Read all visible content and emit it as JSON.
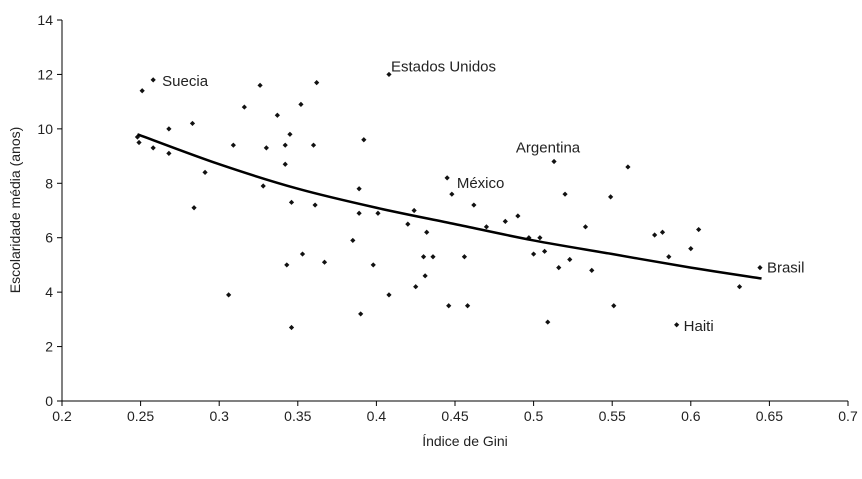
{
  "chart_data": {
    "type": "scatter",
    "title": "",
    "xlabel": "Índice de Gini",
    "ylabel": "Escolaridade média (anos)",
    "xlim": [
      0.2,
      0.7
    ],
    "ylim": [
      0,
      14
    ],
    "x_ticks": [
      0.2,
      0.25,
      0.3,
      0.35,
      0.4,
      0.45,
      0.5,
      0.55,
      0.6,
      0.65,
      0.7
    ],
    "x_tick_labels": [
      "0.2",
      "0.25",
      "0.3",
      "0.35",
      "0.4",
      "0.45",
      "0.5",
      "0.55",
      "0.6",
      "0.65",
      "0.7"
    ],
    "y_ticks": [
      0,
      2,
      4,
      6,
      8,
      10,
      12,
      14
    ],
    "y_tick_labels": [
      "0",
      "2",
      "4",
      "6",
      "8",
      "10",
      "12",
      "14"
    ],
    "grid": false,
    "legend": "none",
    "series": [
      {
        "points": [
          [
            0.248,
            9.7
          ],
          [
            0.249,
            9.5
          ],
          [
            0.251,
            11.4
          ],
          [
            0.258,
            11.8
          ],
          [
            0.258,
            9.3
          ],
          [
            0.268,
            10.0
          ],
          [
            0.268,
            9.1
          ],
          [
            0.283,
            10.2
          ],
          [
            0.284,
            7.1
          ],
          [
            0.291,
            8.4
          ],
          [
            0.306,
            3.9
          ],
          [
            0.309,
            9.4
          ],
          [
            0.316,
            10.8
          ],
          [
            0.326,
            11.6
          ],
          [
            0.328,
            7.9
          ],
          [
            0.33,
            9.3
          ],
          [
            0.337,
            10.5
          ],
          [
            0.342,
            9.4
          ],
          [
            0.342,
            8.7
          ],
          [
            0.343,
            5.0
          ],
          [
            0.345,
            9.8
          ],
          [
            0.346,
            7.3
          ],
          [
            0.346,
            2.7
          ],
          [
            0.352,
            10.9
          ],
          [
            0.353,
            5.4
          ],
          [
            0.36,
            9.4
          ],
          [
            0.361,
            7.2
          ],
          [
            0.362,
            11.7
          ],
          [
            0.367,
            5.1
          ],
          [
            0.385,
            5.9
          ],
          [
            0.389,
            7.8
          ],
          [
            0.389,
            6.9
          ],
          [
            0.39,
            3.2
          ],
          [
            0.392,
            9.6
          ],
          [
            0.398,
            5.0
          ],
          [
            0.401,
            6.9
          ],
          [
            0.408,
            3.9
          ],
          [
            0.408,
            12.0
          ],
          [
            0.42,
            6.5
          ],
          [
            0.424,
            7.0
          ],
          [
            0.425,
            4.2
          ],
          [
            0.43,
            5.3
          ],
          [
            0.431,
            4.6
          ],
          [
            0.432,
            6.2
          ],
          [
            0.436,
            5.3
          ],
          [
            0.445,
            8.2
          ],
          [
            0.446,
            3.5
          ],
          [
            0.448,
            7.6
          ],
          [
            0.456,
            5.3
          ],
          [
            0.458,
            3.5
          ],
          [
            0.462,
            7.2
          ],
          [
            0.47,
            6.4
          ],
          [
            0.482,
            6.6
          ],
          [
            0.49,
            6.8
          ],
          [
            0.497,
            6.0
          ],
          [
            0.5,
            5.4
          ],
          [
            0.504,
            6.0
          ],
          [
            0.507,
            5.5
          ],
          [
            0.509,
            2.9
          ],
          [
            0.513,
            8.8
          ],
          [
            0.516,
            4.9
          ],
          [
            0.52,
            7.6
          ],
          [
            0.523,
            5.2
          ],
          [
            0.533,
            6.4
          ],
          [
            0.537,
            4.8
          ],
          [
            0.549,
            7.5
          ],
          [
            0.551,
            3.5
          ],
          [
            0.56,
            8.6
          ],
          [
            0.577,
            6.1
          ],
          [
            0.582,
            6.2
          ],
          [
            0.586,
            5.3
          ],
          [
            0.591,
            2.8
          ],
          [
            0.6,
            5.6
          ],
          [
            0.605,
            6.3
          ],
          [
            0.631,
            4.2
          ],
          [
            0.644,
            4.9
          ]
        ]
      }
    ],
    "trendline": {
      "type": "power-curve",
      "points": [
        [
          0.248,
          9.8
        ],
        [
          0.3,
          8.7
        ],
        [
          0.35,
          7.8
        ],
        [
          0.4,
          7.1
        ],
        [
          0.45,
          6.5
        ],
        [
          0.5,
          5.9
        ],
        [
          0.55,
          5.4
        ],
        [
          0.6,
          4.9
        ],
        [
          0.645,
          4.5
        ]
      ]
    },
    "annotations": [
      {
        "label": "Suecia",
        "x": 0.258,
        "y": 11.8
      },
      {
        "label": "Estados Unidos",
        "x": 0.408,
        "y": 12.0
      },
      {
        "label": "Argentina",
        "x": 0.513,
        "y": 8.8
      },
      {
        "label": "México",
        "x": 0.448,
        "y": 7.6
      },
      {
        "label": "Brasil",
        "x": 0.644,
        "y": 4.9
      },
      {
        "label": "Haiti",
        "x": 0.591,
        "y": 2.8
      }
    ]
  }
}
